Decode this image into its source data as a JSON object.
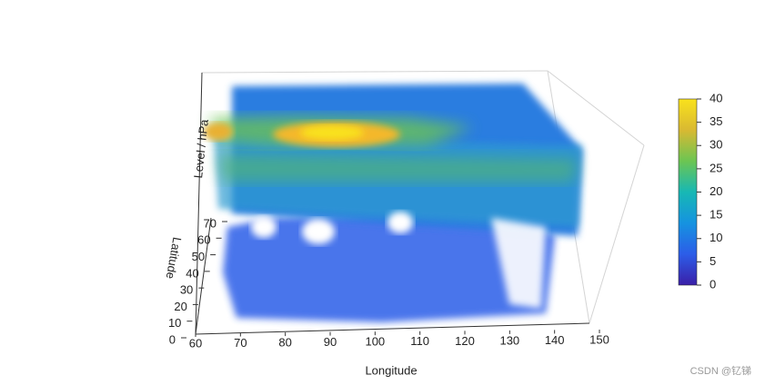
{
  "chart_data": {
    "type": "volume",
    "x_label": "Longitude",
    "y_label": "Latitude",
    "z_label": "Level / hPa",
    "xlim": [
      60,
      150
    ],
    "xticks": [
      60,
      70,
      80,
      90,
      100,
      110,
      120,
      130,
      140,
      150
    ],
    "ylim": [
      0,
      70
    ],
    "yticks": [
      0,
      10,
      20,
      30,
      40,
      50,
      60,
      70
    ],
    "colorbar_lim": [
      0,
      40
    ],
    "colorbar_ticks": [
      0,
      5,
      10,
      15,
      20,
      25,
      30,
      35,
      40
    ],
    "colorscale": [
      "#3a1fa8",
      "#2c5de8",
      "#1593e0",
      "#17b8b4",
      "#6cc552",
      "#d9b932",
      "#f9e21c"
    ],
    "watermark": "CSDN @钇锑"
  }
}
